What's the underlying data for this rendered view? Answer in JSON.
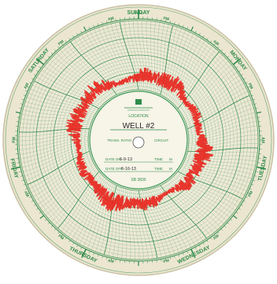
{
  "chart": {
    "days": [
      "SUNDAY",
      "MONDAY",
      "TUESDAY",
      "WEDNESDAY",
      "THURSDAY",
      "FRIDAY",
      "SATURDAY"
    ],
    "am_label": "AM",
    "pm_label": "PM",
    "noon_label": "NOON",
    "colors": {
      "paper": "#f4f0e2",
      "ink": "#2e8b4a",
      "trace": "#e8261e"
    }
  },
  "label_card": {
    "location_label": "LOCATION",
    "location_value": "WELL #2",
    "trans_ratio_label": "TRANS. RATIO",
    "circuit_label": "CIRCUIT",
    "date_on_label": "DATE ON",
    "date_on_value": "6-9-13",
    "time_label": "TIME",
    "date_off_label": "DATE OFF",
    "date_off_value": "6-16-13",
    "m_label": "M",
    "chart_number": "SB 3830"
  }
}
